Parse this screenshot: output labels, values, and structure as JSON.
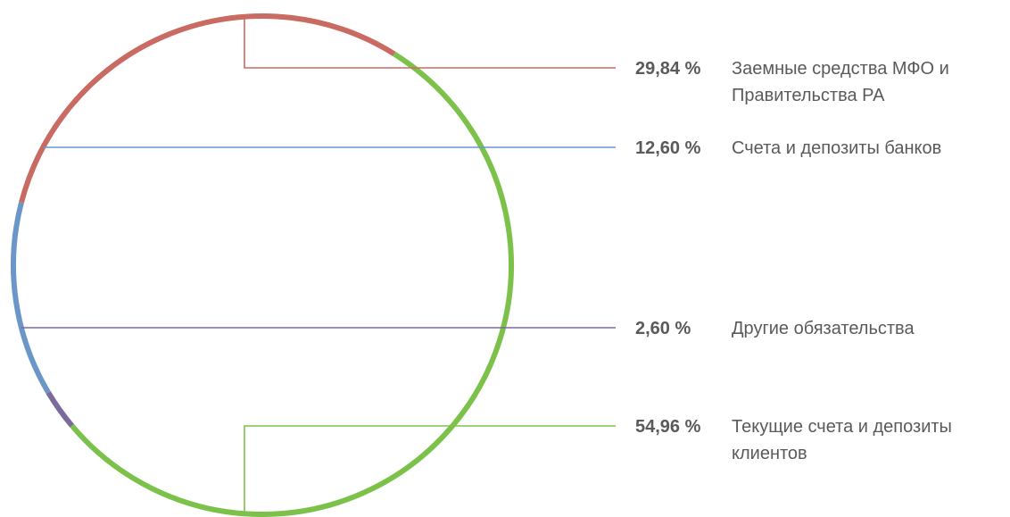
{
  "chart_data": {
    "type": "pie",
    "title": "",
    "slices": [
      {
        "label": "Заемные средства МФО и Правительства РА",
        "label_lines": [
          "Заемные средства МФО и",
          "Правительства РА"
        ],
        "value": 29.84,
        "value_text": "29,84 %",
        "color": "#c96a63"
      },
      {
        "label": "Счета и депозиты банков",
        "label_lines": [
          "Счета и депозиты банков"
        ],
        "value": 12.6,
        "value_text": "12,60 %",
        "color": "#6b97c8"
      },
      {
        "label": "Другие обязательства",
        "label_lines": [
          "Другие обязательства"
        ],
        "value": 2.6,
        "value_text": "2,60 %",
        "color": "#7b6a9c"
      },
      {
        "label": "Текущие счета и депозиты клиентов",
        "label_lines": [
          "Текущие счета и депозиты",
          "клиентов"
        ],
        "value": 54.96,
        "value_text": "54,96 %",
        "color": "#7cc24a"
      }
    ],
    "legend_placement": "right"
  }
}
